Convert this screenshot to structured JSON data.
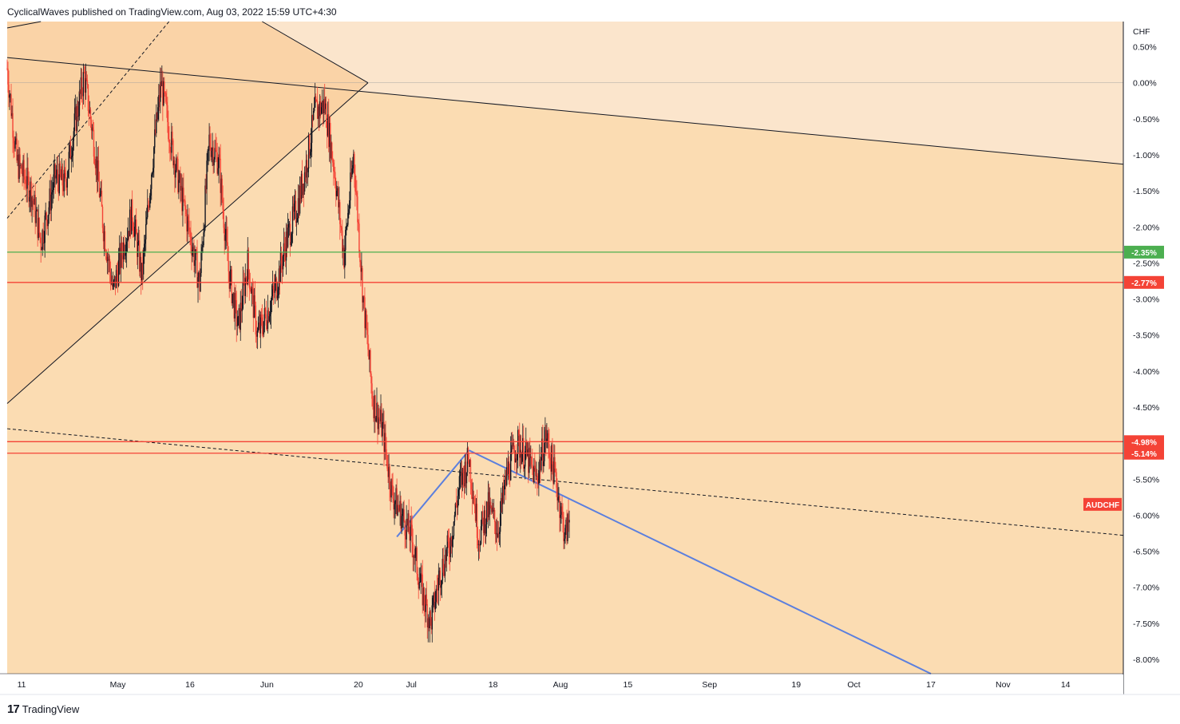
{
  "header": {
    "text": "CyclicalWaves published on TradingView.com, Aug 03, 2022 15:59 UTC+4:30"
  },
  "footer": {
    "logo": "17",
    "text": "TradingView"
  },
  "colors": {
    "background": "#fbdcb2",
    "upper_zone": "#fbe5cc",
    "channel_fill": "#f9d0a0",
    "candle_up": "#131722",
    "candle_down": "#f44336",
    "green_level": "#4caf50",
    "red_level": "#f44336",
    "blue_line": "#5b7fde",
    "trend_line": "#131722"
  },
  "chart_data": {
    "type": "candlestick",
    "symbol": "AUDCHF",
    "currency": "CHF",
    "y_axis": {
      "unit": "%",
      "range": [
        -8.2,
        0.85
      ],
      "ticks": [
        "0.50%",
        "0.00%",
        "-0.50%",
        "-1.00%",
        "-1.50%",
        "-2.00%",
        "-2.50%",
        "-3.00%",
        "-3.50%",
        "-4.00%",
        "-4.50%",
        "-5.00%",
        "-5.50%",
        "-6.00%",
        "-6.50%",
        "-7.00%",
        "-7.50%",
        "-8.00%"
      ]
    },
    "x_axis": {
      "range": [
        "2022-04-08",
        "2022-11-26"
      ],
      "ticks": [
        {
          "label": "11",
          "date": "2022-04-11"
        },
        {
          "label": "May",
          "date": "2022-05-01"
        },
        {
          "label": "16",
          "date": "2022-05-16"
        },
        {
          "label": "Jun",
          "date": "2022-06-01"
        },
        {
          "label": "20",
          "date": "2022-06-20"
        },
        {
          "label": "Jul",
          "date": "2022-07-01"
        },
        {
          "label": "18",
          "date": "2022-07-18"
        },
        {
          "label": "Aug",
          "date": "2022-08-01"
        },
        {
          "label": "15",
          "date": "2022-08-15"
        },
        {
          "label": "Sep",
          "date": "2022-09-01"
        },
        {
          "label": "19",
          "date": "2022-09-19"
        },
        {
          "label": "Oct",
          "date": "2022-10-01"
        },
        {
          "label": "17",
          "date": "2022-10-17"
        },
        {
          "label": "Nov",
          "date": "2022-11-01"
        },
        {
          "label": "14",
          "date": "2022-11-14"
        }
      ]
    },
    "price_path": [
      {
        "date": "2022-04-08",
        "value": 0.2
      },
      {
        "date": "2022-04-10",
        "value": -1.1
      },
      {
        "date": "2022-04-13",
        "value": -1.5
      },
      {
        "date": "2022-04-15",
        "value": -2.2
      },
      {
        "date": "2022-04-18",
        "value": -1.3
      },
      {
        "date": "2022-04-20",
        "value": -1.4
      },
      {
        "date": "2022-04-22",
        "value": -0.6
      },
      {
        "date": "2022-04-24",
        "value": 0.1
      },
      {
        "date": "2022-04-26",
        "value": -0.8
      },
      {
        "date": "2022-04-28",
        "value": -2.0
      },
      {
        "date": "2022-04-30",
        "value": -2.9
      },
      {
        "date": "2022-05-02",
        "value": -2.3
      },
      {
        "date": "2022-05-04",
        "value": -1.8
      },
      {
        "date": "2022-05-06",
        "value": -2.7
      },
      {
        "date": "2022-05-08",
        "value": -1.2
      },
      {
        "date": "2022-05-10",
        "value": 0.0
      },
      {
        "date": "2022-05-12",
        "value": -0.8
      },
      {
        "date": "2022-05-14",
        "value": -1.5
      },
      {
        "date": "2022-05-16",
        "value": -2.1
      },
      {
        "date": "2022-05-18",
        "value": -2.8
      },
      {
        "date": "2022-05-20",
        "value": -0.8
      },
      {
        "date": "2022-05-22",
        "value": -1.1
      },
      {
        "date": "2022-05-24",
        "value": -2.6
      },
      {
        "date": "2022-05-26",
        "value": -3.4
      },
      {
        "date": "2022-05-28",
        "value": -2.5
      },
      {
        "date": "2022-05-30",
        "value": -3.5
      },
      {
        "date": "2022-06-01",
        "value": -3.2
      },
      {
        "date": "2022-06-03",
        "value": -2.8
      },
      {
        "date": "2022-06-05",
        "value": -2.2
      },
      {
        "date": "2022-06-07",
        "value": -1.8
      },
      {
        "date": "2022-06-09",
        "value": -1.2
      },
      {
        "date": "2022-06-11",
        "value": -0.4
      },
      {
        "date": "2022-06-13",
        "value": -0.3
      },
      {
        "date": "2022-06-15",
        "value": -1.2
      },
      {
        "date": "2022-06-17",
        "value": -2.4
      },
      {
        "date": "2022-06-19",
        "value": -1.0
      },
      {
        "date": "2022-06-21",
        "value": -3.0
      },
      {
        "date": "2022-06-23",
        "value": -4.4
      },
      {
        "date": "2022-06-25",
        "value": -4.8
      },
      {
        "date": "2022-06-27",
        "value": -5.7
      },
      {
        "date": "2022-06-29",
        "value": -6.0
      },
      {
        "date": "2022-07-01",
        "value": -6.3
      },
      {
        "date": "2022-07-03",
        "value": -7.0
      },
      {
        "date": "2022-07-05",
        "value": -7.5
      },
      {
        "date": "2022-07-07",
        "value": -6.8
      },
      {
        "date": "2022-07-09",
        "value": -6.4
      },
      {
        "date": "2022-07-11",
        "value": -5.6
      },
      {
        "date": "2022-07-13",
        "value": -5.2
      },
      {
        "date": "2022-07-15",
        "value": -6.3
      },
      {
        "date": "2022-07-17",
        "value": -5.9
      },
      {
        "date": "2022-07-19",
        "value": -6.2
      },
      {
        "date": "2022-07-21",
        "value": -5.4
      },
      {
        "date": "2022-07-23",
        "value": -5.0
      },
      {
        "date": "2022-07-25",
        "value": -5.2
      },
      {
        "date": "2022-07-27",
        "value": -5.5
      },
      {
        "date": "2022-07-29",
        "value": -4.9
      },
      {
        "date": "2022-07-31",
        "value": -5.5
      },
      {
        "date": "2022-08-02",
        "value": -6.3
      },
      {
        "date": "2022-08-03",
        "value": -6.0
      }
    ],
    "horizontal_levels": [
      {
        "label": "-2.35%",
        "value": -2.35,
        "color": "green"
      },
      {
        "label": "-2.77%",
        "value": -2.77,
        "color": "red"
      },
      {
        "label": "-4.98%",
        "value": -4.98,
        "color": "red"
      },
      {
        "label": "-5.14%",
        "value": -5.14,
        "color": "red"
      }
    ],
    "zero_line": 0.0,
    "trendlines": [
      {
        "style": "solid",
        "from": {
          "date": "2022-04-08",
          "value": 0.35
        },
        "to": {
          "date": "2022-11-26",
          "value": -1.13
        }
      },
      {
        "style": "dashed",
        "from": {
          "date": "2022-04-08",
          "value": -4.8
        },
        "to": {
          "date": "2022-11-26",
          "value": -6.28
        }
      },
      {
        "style": "solid-blue",
        "from": {
          "date": "2022-07-13",
          "value": -5.1
        },
        "to": {
          "date": "2022-10-17",
          "value": -8.2
        }
      },
      {
        "style": "solid-blue",
        "from": {
          "date": "2022-06-28",
          "value": -6.3
        },
        "to": {
          "date": "2022-07-13",
          "value": -5.1
        }
      },
      {
        "style": "channel-lower",
        "from": {
          "date": "2022-04-08",
          "value": -4.45
        },
        "to": {
          "date": "2022-06-22",
          "value": 0.0
        }
      },
      {
        "style": "channel-upper",
        "from": {
          "date": "2022-04-08",
          "value": 0.85
        },
        "to": {
          "date": "2022-05-10",
          "value": 0.85
        }
      },
      {
        "style": "dashed-channel",
        "from": {
          "date": "2022-04-08",
          "value": -1.88
        },
        "to": {
          "date": "2022-05-05",
          "value": 0.85
        }
      }
    ],
    "symbol_badge": {
      "label": "AUDCHF",
      "value": -5.85
    }
  }
}
